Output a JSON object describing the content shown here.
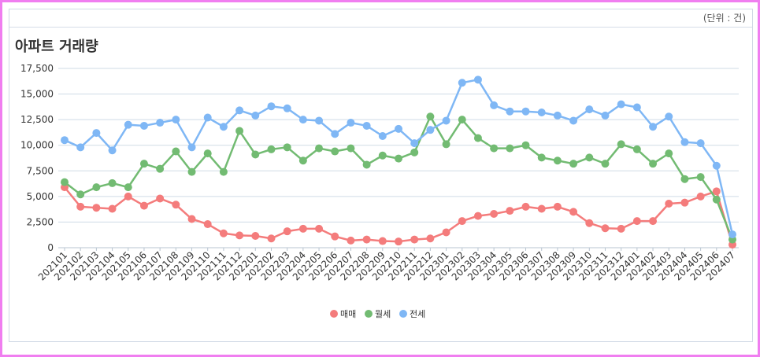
{
  "unit_label": "(단위 : 건)",
  "chart_data": {
    "type": "line",
    "title": "아파트 거래량",
    "xlabel": "",
    "ylabel": "",
    "ylim": [
      0,
      17500
    ],
    "yticks": [
      0,
      2500,
      5000,
      7500,
      10000,
      12500,
      15000,
      17500
    ],
    "ytick_labels": [
      "0",
      "2,500",
      "5,000",
      "7,500",
      "10,000",
      "12,500",
      "15,000",
      "17,500"
    ],
    "grid": true,
    "legend_position": "bottom",
    "categories": [
      "202101",
      "202102",
      "202103",
      "202104",
      "202105",
      "202106",
      "202107",
      "202108",
      "202109",
      "202110",
      "202111",
      "202112",
      "202201",
      "202202",
      "202203",
      "202204",
      "202205",
      "202206",
      "202207",
      "202208",
      "202209",
      "202210",
      "202211",
      "202212",
      "202301",
      "202302",
      "202303",
      "202304",
      "202305",
      "202306",
      "202307",
      "202308",
      "202309",
      "202310",
      "202311",
      "202312",
      "202401",
      "202402",
      "202403",
      "202404",
      "202405",
      "202406",
      "202407"
    ],
    "series": [
      {
        "name": "매매",
        "color": "#f47c7c",
        "values": [
          5900,
          4000,
          3900,
          3800,
          5000,
          4100,
          4800,
          4200,
          2800,
          2300,
          1400,
          1200,
          1150,
          900,
          1600,
          1850,
          1850,
          1100,
          700,
          800,
          650,
          600,
          800,
          900,
          1500,
          2600,
          3100,
          3300,
          3600,
          4000,
          3800,
          4000,
          3500,
          2400,
          1900,
          1850,
          2600,
          2600,
          4300,
          4400,
          5000,
          5500,
          300
        ]
      },
      {
        "name": "월세",
        "color": "#72bb72",
        "values": [
          6400,
          5200,
          5900,
          6300,
          5900,
          8200,
          7700,
          9400,
          7400,
          9200,
          7400,
          11400,
          9100,
          9600,
          9800,
          8500,
          9700,
          9400,
          9700,
          8100,
          9000,
          8700,
          9300,
          12800,
          10100,
          12500,
          10700,
          9700,
          9700,
          10000,
          8800,
          8500,
          8200,
          8800,
          8200,
          10100,
          9600,
          8200,
          9200,
          6700,
          6900,
          4700,
          800
        ]
      },
      {
        "name": "전세",
        "color": "#7fb7f5",
        "values": [
          10500,
          9800,
          11200,
          9500,
          12000,
          11900,
          12200,
          12500,
          9800,
          12700,
          11800,
          13400,
          12900,
          13800,
          13600,
          12500,
          12400,
          11100,
          12200,
          11900,
          10900,
          11600,
          10200,
          11500,
          12400,
          16100,
          16400,
          13900,
          13300,
          13300,
          13200,
          12900,
          12400,
          13500,
          12900,
          14000,
          13700,
          11800,
          12800,
          10300,
          10200,
          8000,
          1300
        ]
      }
    ]
  }
}
